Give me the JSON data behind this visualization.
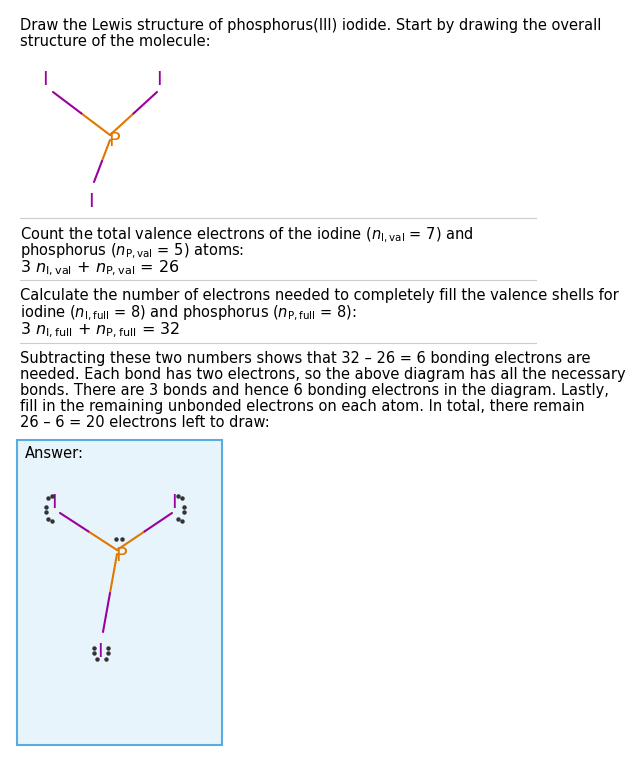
{
  "bg_color": "#ffffff",
  "text_color": "#000000",
  "P_color": "#e07800",
  "I_color": "#9b009b",
  "dot_color": "#333333",
  "answer_bg": "#e8f4fb",
  "answer_border": "#5aace0",
  "sep_color": "#cccccc",
  "title_line1": "Draw the Lewis structure of phosphorus(III) iodide. Start by drawing the overall",
  "title_line2": "structure of the molecule:",
  "sec1_line1": "Count the total valence electrons of the iodine (",
  "sec1_line2": ") and",
  "sec1_line3": "phosphorus (",
  "sec1_line4": ") atoms:",
  "sec2_line1": "Calculate the number of electrons needed to completely fill the valence shells for",
  "sec2_line2": "iodine (",
  "sec2_line3": ") and phosphorus (",
  "sec2_line4": "):",
  "sec3_lines": [
    "Subtracting these two numbers shows that 32 – 26 = 6 bonding electrons are",
    "needed. Each bond has two electrons, so the above diagram has all the necessary",
    "bonds. There are 3 bonds and hence 6 bonding electrons in the diagram. Lastly,",
    "fill in the remaining unbonded electrons on each atom. In total, there remain",
    "26 – 6 = 20 electrons left to draw:"
  ],
  "answer_label": "Answer:"
}
